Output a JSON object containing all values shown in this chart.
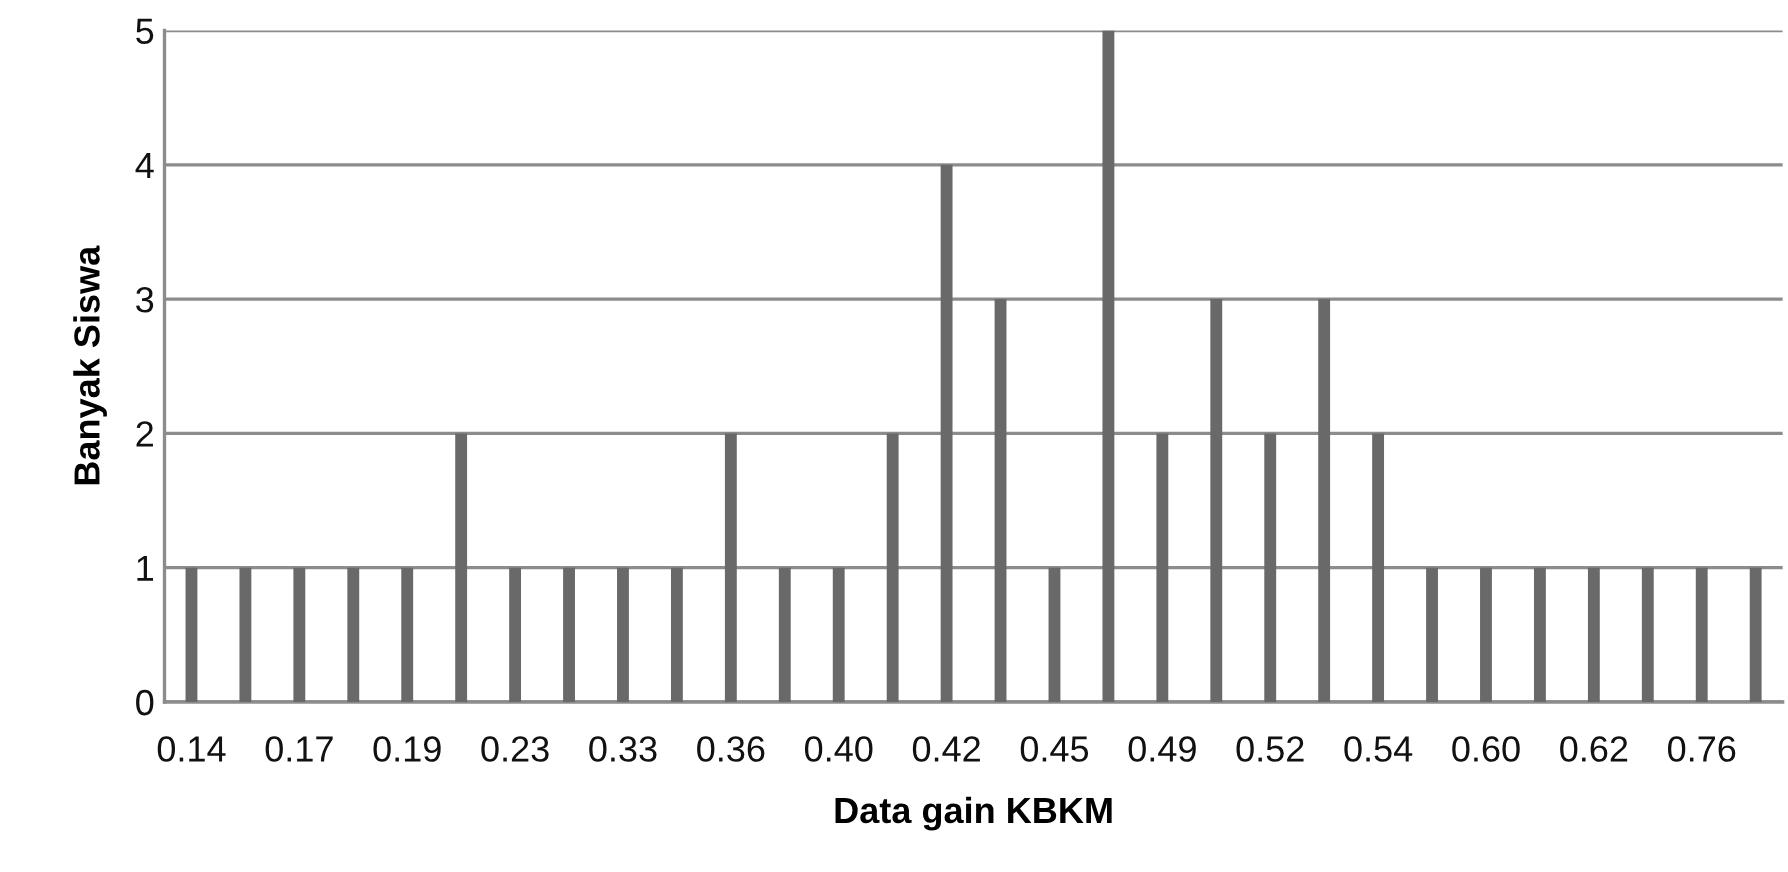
{
  "chart_data": {
    "type": "bar",
    "xlabel": "Data gain KBKM",
    "ylabel": "Banyak Siswa",
    "categories": [
      "0.14",
      null,
      "0.17",
      null,
      "0.19",
      null,
      "0.23",
      null,
      "0.33",
      null,
      "0.36",
      null,
      "0.40",
      null,
      "0.42",
      null,
      "0.45",
      null,
      "0.49",
      null,
      "0.52",
      null,
      "0.54",
      null,
      "0.60",
      null,
      "0.62",
      null,
      "0.76",
      null
    ],
    "values": [
      1,
      1,
      1,
      1,
      1,
      2,
      1,
      1,
      1,
      1,
      2,
      1,
      1,
      2,
      4,
      3,
      1,
      5,
      2,
      3,
      2,
      3,
      2,
      1,
      1,
      1,
      1,
      1,
      1,
      1
    ],
    "color": "#696969",
    "ylim": [
      0,
      5
    ],
    "yticks": [
      0,
      1,
      2,
      3,
      4,
      5
    ],
    "grid": "y",
    "legend": false
  }
}
